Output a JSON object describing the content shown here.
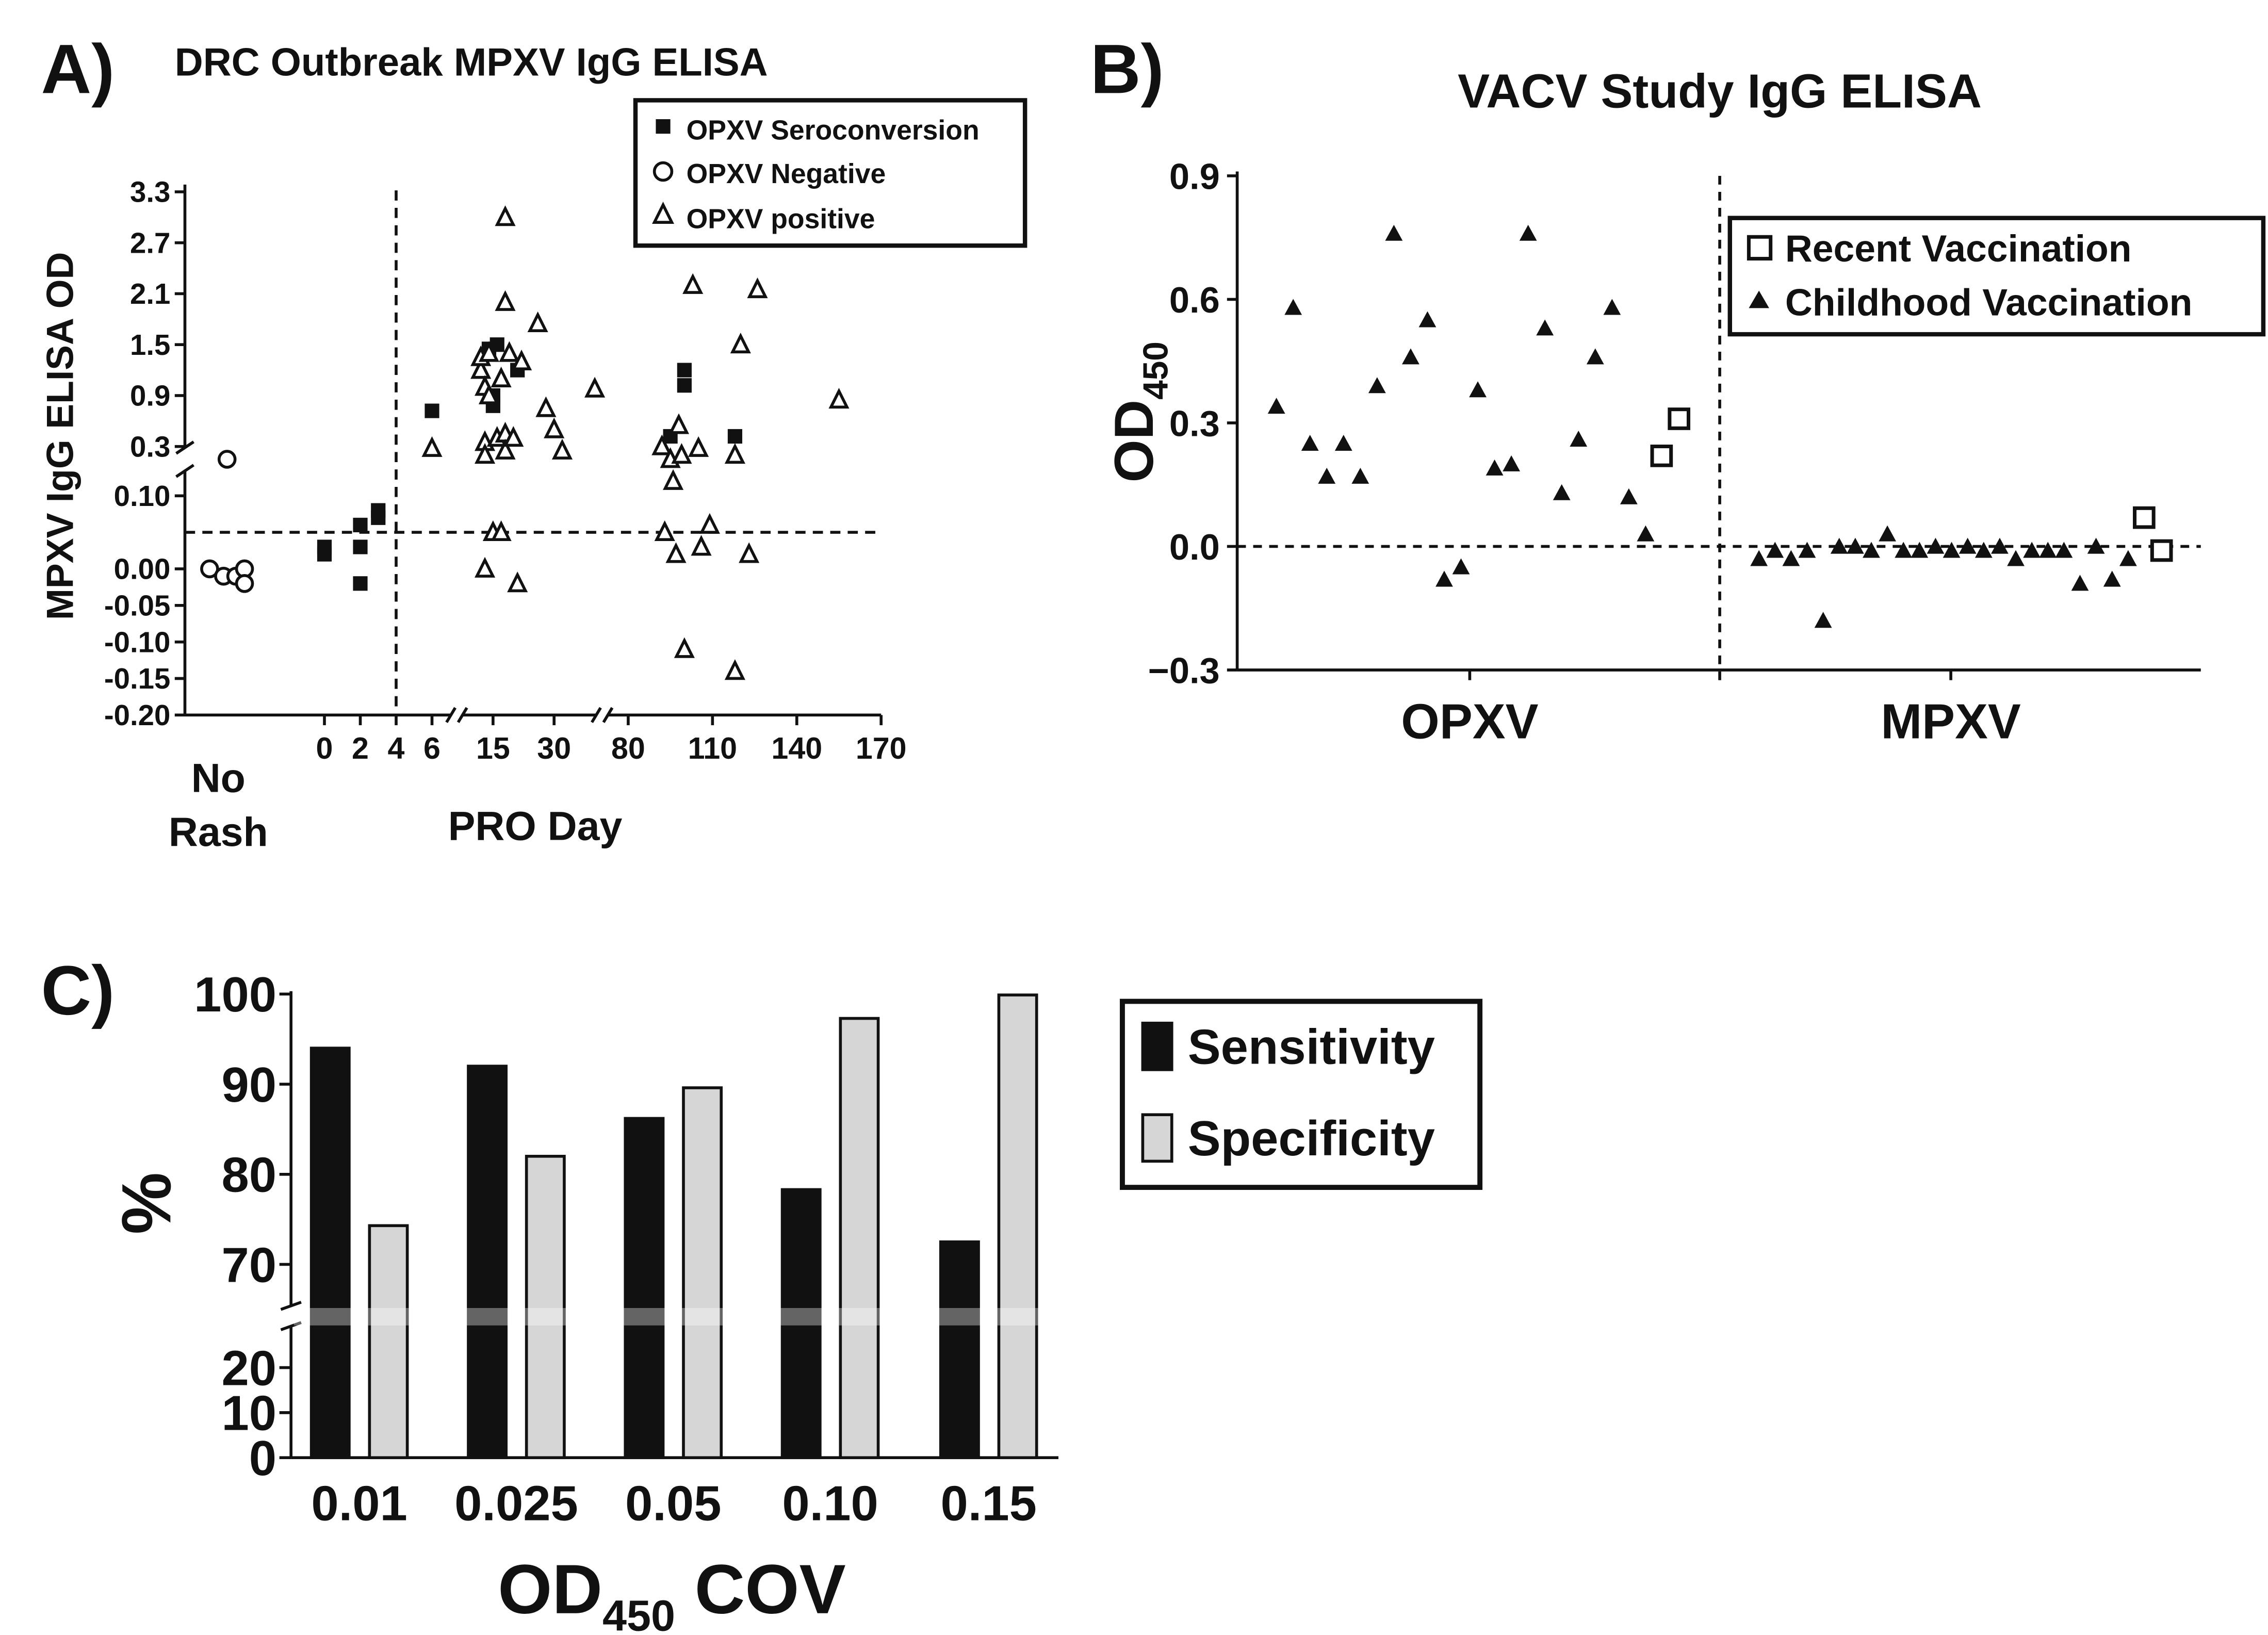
{
  "colors": {
    "ink": "#111111",
    "specificity_fill": "#d6d6d6",
    "white": "#ffffff"
  },
  "chart_data": [
    {
      "panel": "A)",
      "type": "scatter",
      "title": "DRC Outbreak MPXV IgG ELISA",
      "ylabel": "MPXV IgG ELISA OD",
      "xlabel": "PRO Day",
      "no_rash_label": [
        "No",
        "Rash"
      ],
      "ylim_lower": [
        -0.2,
        0.15
      ],
      "ylim_upper": [
        0.15,
        3.3
      ],
      "yticks_lower": [
        "0.10",
        "0.00",
        "-0.05",
        "-0.10",
        "-0.15",
        "-0.20"
      ],
      "yticks_lower_values": [
        0.1,
        0.0,
        -0.05,
        -0.1,
        -0.15,
        -0.2
      ],
      "yticks_upper": [
        "3.3",
        "2.7",
        "2.1",
        "1.5",
        "0.9",
        "0.3"
      ],
      "yticks_upper_values": [
        3.3,
        2.7,
        2.1,
        1.5,
        0.9,
        0.3
      ],
      "xticks": [
        "0",
        "2",
        "4",
        "6",
        "15",
        "30",
        "80",
        "110",
        "140",
        "170"
      ],
      "xtick_values": [
        0,
        2,
        4,
        6,
        15,
        30,
        80,
        110,
        140,
        170
      ],
      "x_segments": [
        [
          0,
          6
        ],
        [
          9,
          40
        ],
        [
          80,
          170
        ]
      ],
      "cutoff_y": 0.05,
      "cutoff_x": 4,
      "legend": [
        "OPXV Seroconversion",
        "OPXV Negative",
        "OPXV positive"
      ],
      "legend_position": "top-right",
      "series": [
        {
          "name": "OPXV Seroconversion",
          "marker": "filled-square",
          "points": [
            [
              0,
              0.02
            ],
            [
              0,
              0.03
            ],
            [
              2,
              0.03
            ],
            [
              2,
              0.06
            ],
            [
              2,
              -0.02
            ],
            [
              3,
              0.08
            ],
            [
              3,
              0.07
            ],
            [
              6,
              0.72
            ],
            [
              14,
              1.45
            ],
            [
              15,
              0.9
            ],
            [
              15,
              0.78
            ],
            [
              16,
              1.5
            ],
            [
              21,
              1.2
            ],
            [
              95,
              0.42
            ],
            [
              100,
              1.2
            ],
            [
              100,
              1.02
            ],
            [
              118,
              0.42
            ]
          ]
        },
        {
          "name": "OPXV Negative",
          "marker": "open-circle",
          "points": [
            [
              -0.5,
              0.0
            ],
            [
              0.3,
              -0.01
            ],
            [
              1,
              -0.01
            ],
            [
              1.5,
              0.0
            ],
            [
              1.5,
              -0.02
            ],
            [
              0.5,
              0.15
            ]
          ]
        },
        {
          "name": "OPXV positive",
          "marker": "open-triangle",
          "points": [
            [
              6,
              0.28
            ],
            [
              12,
              1.2
            ],
            [
              12,
              1.35
            ],
            [
              13,
              1.0
            ],
            [
              13,
              0.35
            ],
            [
              13,
              0.2
            ],
            [
              13,
              0.0
            ],
            [
              14,
              1.4
            ],
            [
              14,
              0.9
            ],
            [
              15,
              0.05
            ],
            [
              16,
              0.4
            ],
            [
              17,
              0.05
            ],
            [
              17,
              1.1
            ],
            [
              18,
              2.0
            ],
            [
              18,
              3.0
            ],
            [
              18,
              0.45
            ],
            [
              18,
              0.25
            ],
            [
              19,
              1.4
            ],
            [
              20,
              0.4
            ],
            [
              21,
              -0.02
            ],
            [
              22,
              1.3
            ],
            [
              26,
              1.75
            ],
            [
              28,
              0.75
            ],
            [
              30,
              0.5
            ],
            [
              32,
              0.25
            ],
            [
              40,
              0.98
            ],
            [
              92,
              0.3
            ],
            [
              93,
              0.05
            ],
            [
              95,
              0.15
            ],
            [
              96,
              0.12
            ],
            [
              97,
              0.02
            ],
            [
              98,
              0.55
            ],
            [
              99,
              0.2
            ],
            [
              100,
              -0.11
            ],
            [
              103,
              2.2
            ],
            [
              105,
              0.28
            ],
            [
              106,
              0.03
            ],
            [
              109,
              0.06
            ],
            [
              118,
              0.2
            ],
            [
              118,
              -0.14
            ],
            [
              120,
              1.5
            ],
            [
              123,
              0.02
            ],
            [
              126,
              2.15
            ],
            [
              155,
              0.85
            ]
          ]
        }
      ]
    },
    {
      "panel": "B)",
      "type": "scatter",
      "title": "VACV Study IgG ELISA",
      "ylabel": "OD",
      "ylabel_sub": "450",
      "categories": [
        "OPXV",
        "MPXV"
      ],
      "ylim": [
        -0.3,
        0.9
      ],
      "yticks": [
        "0.9",
        "0.6",
        "0.3",
        "0.0",
        "−0.3"
      ],
      "ytick_values": [
        0.9,
        0.6,
        0.3,
        0.0,
        -0.3
      ],
      "cutoff_y": 0.0,
      "legend": [
        "Recent Vaccination",
        "Childhood Vaccination"
      ],
      "legend_position": "top-right",
      "series": [
        {
          "name": "Childhood Vaccination",
          "marker": "filled-triangle",
          "OPXV": [
            0.34,
            0.58,
            0.25,
            0.17,
            0.25,
            0.17,
            0.39,
            0.76,
            0.46,
            0.55,
            -0.08,
            -0.05,
            0.38,
            0.19,
            0.2,
            0.76,
            0.53,
            0.13,
            0.26,
            0.46,
            0.58,
            0.12,
            0.03
          ],
          "MPXV": [
            -0.03,
            -0.01,
            -0.03,
            -0.01,
            -0.18,
            0.0,
            0.0,
            -0.01,
            0.03,
            -0.01,
            -0.01,
            0.0,
            -0.01,
            0.0,
            -0.01,
            0.0,
            -0.03,
            -0.01,
            -0.01,
            -0.01,
            -0.09,
            0.0,
            -0.08,
            -0.03
          ]
        },
        {
          "name": "Recent Vaccination",
          "marker": "open-square",
          "OPXV": [
            0.22,
            0.31
          ],
          "MPXV": [
            0.07,
            -0.01
          ]
        }
      ]
    },
    {
      "panel": "C)",
      "type": "bar",
      "xlabel": "OD",
      "xlabel_sub": "450",
      "xlabel_tail": " COV",
      "ylabel": "%",
      "categories": [
        "0.01",
        "0.025",
        "0.05",
        "0.10",
        "0.15"
      ],
      "ylim_lower": [
        0,
        25
      ],
      "ylim_upper": [
        65,
        100
      ],
      "yticks_upper": [
        "100",
        "90",
        "80",
        "70"
      ],
      "yticks_upper_values": [
        100,
        90,
        80,
        70
      ],
      "yticks_lower": [
        "20",
        "10",
        "0"
      ],
      "yticks_lower_values": [
        20,
        10,
        0
      ],
      "legend": [
        "Sensitivity",
        "Specificity"
      ],
      "legend_position": "right",
      "series": [
        {
          "name": "Sensitivity",
          "values": [
            94,
            92,
            86.2,
            78.3,
            72.5
          ]
        },
        {
          "name": "Specificity",
          "values": [
            74.3,
            82,
            89.6,
            97.3,
            99.9
          ]
        }
      ]
    }
  ]
}
